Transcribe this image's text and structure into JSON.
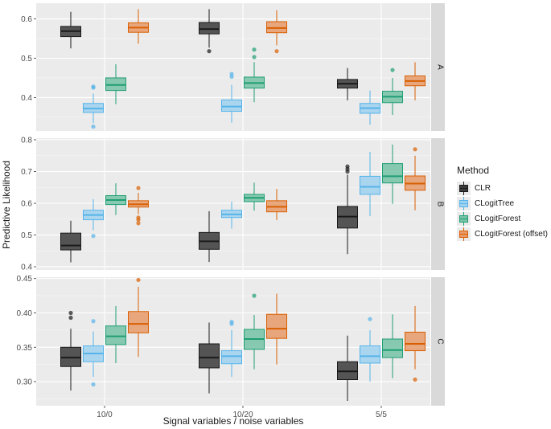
{
  "chart_data": {
    "type": "boxplot",
    "xlabel": "Signal variables / noise variables",
    "ylabel": "Predictive Likelihood",
    "categories": [
      "10/0",
      "10/20",
      "5/5"
    ],
    "legend_title": "Method",
    "series": [
      {
        "name": "CLR",
        "color": "#1a1a1a",
        "fill": "#3a3a3a"
      },
      {
        "name": "CLogitTree",
        "color": "#56b4e9",
        "fill": "#9fd1f0"
      },
      {
        "name": "CLogitForest",
        "color": "#1f9e74",
        "fill": "#76c3a6"
      },
      {
        "name": "CLogitForest (offset)",
        "color": "#d95f02",
        "fill": "#e89a68"
      }
    ],
    "panels": [
      {
        "strip": "A",
        "ylim": [
          0.315,
          0.64
        ],
        "ticks": [
          0.4,
          0.5,
          0.6
        ],
        "tick_labels": [
          "0.4",
          "0.5",
          "0.6"
        ],
        "boxes": [
          [
            {
              "q1": 0.555,
              "median": 0.569,
              "q3": 0.581,
              "whisker_low": 0.525,
              "whisker_high": 0.618,
              "outliers": []
            },
            {
              "q1": 0.362,
              "median": 0.372,
              "q3": 0.385,
              "whisker_low": 0.335,
              "whisker_high": 0.41,
              "outliers": [
                0.326,
                0.425,
                0.428
              ]
            },
            {
              "q1": 0.418,
              "median": 0.432,
              "q3": 0.45,
              "whisker_low": 0.383,
              "whisker_high": 0.485,
              "outliers": []
            },
            {
              "q1": 0.566,
              "median": 0.578,
              "q3": 0.59,
              "whisker_low": 0.537,
              "whisker_high": 0.625,
              "outliers": []
            }
          ],
          [
            {
              "q1": 0.562,
              "median": 0.574,
              "q3": 0.591,
              "whisker_low": 0.527,
              "whisker_high": 0.625,
              "outliers": [
                0.518
              ]
            },
            {
              "q1": 0.365,
              "median": 0.377,
              "q3": 0.394,
              "whisker_low": 0.336,
              "whisker_high": 0.432,
              "outliers": [
                0.453,
                0.46
              ]
            },
            {
              "q1": 0.424,
              "median": 0.437,
              "q3": 0.452,
              "whisker_low": 0.388,
              "whisker_high": 0.49,
              "outliers": [
                0.503,
                0.522
              ]
            },
            {
              "q1": 0.565,
              "median": 0.577,
              "q3": 0.593,
              "whisker_low": 0.533,
              "whisker_high": 0.622,
              "outliers": [
                0.518
              ]
            }
          ],
          [
            {
              "q1": 0.424,
              "median": 0.435,
              "q3": 0.446,
              "whisker_low": 0.393,
              "whisker_high": 0.475,
              "outliers": []
            },
            {
              "q1": 0.36,
              "median": 0.373,
              "q3": 0.385,
              "whisker_low": 0.331,
              "whisker_high": 0.418,
              "outliers": []
            },
            {
              "q1": 0.387,
              "median": 0.402,
              "q3": 0.416,
              "whisker_low": 0.356,
              "whisker_high": 0.45,
              "outliers": [
                0.47
              ]
            },
            {
              "q1": 0.43,
              "median": 0.442,
              "q3": 0.455,
              "whisker_low": 0.393,
              "whisker_high": 0.49,
              "outliers": []
            }
          ]
        ]
      },
      {
        "strip": "B",
        "ylim": [
          0.39,
          0.805
        ],
        "ticks": [
          0.4,
          0.5,
          0.6,
          0.7,
          0.8
        ],
        "tick_labels": [
          "0.4",
          "0.5",
          "0.6",
          "0.7",
          "0.8"
        ],
        "boxes": [
          [
            {
              "q1": 0.453,
              "median": 0.467,
              "q3": 0.506,
              "whisker_low": 0.414,
              "whisker_high": 0.545,
              "outliers": []
            },
            {
              "q1": 0.548,
              "median": 0.563,
              "q3": 0.578,
              "whisker_low": 0.515,
              "whisker_high": 0.613,
              "outliers": [
                0.497
              ]
            },
            {
              "q1": 0.596,
              "median": 0.61,
              "q3": 0.624,
              "whisker_low": 0.563,
              "whisker_high": 0.663,
              "outliers": []
            },
            {
              "q1": 0.588,
              "median": 0.597,
              "q3": 0.608,
              "whisker_low": 0.566,
              "whisker_high": 0.633,
              "outliers": [
                0.648,
                0.555,
                0.548,
                0.537
              ]
            }
          ],
          [
            {
              "q1": 0.455,
              "median": 0.48,
              "q3": 0.508,
              "whisker_low": 0.415,
              "whisker_high": 0.575,
              "outliers": []
            },
            {
              "q1": 0.555,
              "median": 0.565,
              "q3": 0.578,
              "whisker_low": 0.52,
              "whisker_high": 0.605,
              "outliers": []
            },
            {
              "q1": 0.605,
              "median": 0.617,
              "q3": 0.628,
              "whisker_low": 0.577,
              "whisker_high": 0.665,
              "outliers": []
            },
            {
              "q1": 0.573,
              "median": 0.589,
              "q3": 0.608,
              "whisker_low": 0.547,
              "whisker_high": 0.645,
              "outliers": []
            }
          ],
          [
            {
              "q1": 0.522,
              "median": 0.558,
              "q3": 0.59,
              "whisker_low": 0.44,
              "whisker_high": 0.69,
              "outliers": [
                0.7,
                0.708,
                0.716
              ]
            },
            {
              "q1": 0.628,
              "median": 0.652,
              "q3": 0.685,
              "whisker_low": 0.56,
              "whisker_high": 0.762,
              "outliers": []
            },
            {
              "q1": 0.664,
              "median": 0.685,
              "q3": 0.725,
              "whisker_low": 0.598,
              "whisker_high": 0.785,
              "outliers": []
            },
            {
              "q1": 0.641,
              "median": 0.662,
              "q3": 0.686,
              "whisker_low": 0.578,
              "whisker_high": 0.75,
              "outliers": [
                0.77
              ]
            }
          ]
        ]
      },
      {
        "strip": "C",
        "ylim": [
          0.265,
          0.452
        ],
        "ticks": [
          0.3,
          0.35,
          0.4,
          0.45
        ],
        "tick_labels": [
          "0.30",
          "0.35",
          "0.40",
          "0.45"
        ],
        "boxes": [
          [
            {
              "q1": 0.322,
              "median": 0.335,
              "q3": 0.35,
              "whisker_low": 0.287,
              "whisker_high": 0.377,
              "outliers": [
                0.393,
                0.4
              ]
            },
            {
              "q1": 0.329,
              "median": 0.341,
              "q3": 0.352,
              "whisker_low": 0.307,
              "whisker_high": 0.373,
              "outliers": [
                0.388,
                0.296
              ]
            },
            {
              "q1": 0.354,
              "median": 0.366,
              "q3": 0.381,
              "whisker_low": 0.327,
              "whisker_high": 0.41,
              "outliers": []
            },
            {
              "q1": 0.371,
              "median": 0.384,
              "q3": 0.402,
              "whisker_low": 0.336,
              "whisker_high": 0.438,
              "outliers": [
                0.448
              ]
            }
          ],
          [
            {
              "q1": 0.32,
              "median": 0.335,
              "q3": 0.355,
              "whisker_low": 0.283,
              "whisker_high": 0.386,
              "outliers": []
            },
            {
              "q1": 0.326,
              "median": 0.337,
              "q3": 0.345,
              "whisker_low": 0.307,
              "whisker_high": 0.375,
              "outliers": [
                0.384,
                0.387
              ]
            },
            {
              "q1": 0.347,
              "median": 0.362,
              "q3": 0.376,
              "whisker_low": 0.318,
              "whisker_high": 0.397,
              "outliers": [
                0.425
              ]
            },
            {
              "q1": 0.363,
              "median": 0.377,
              "q3": 0.398,
              "whisker_low": 0.325,
              "whisker_high": 0.428,
              "outliers": []
            }
          ],
          [
            {
              "q1": 0.303,
              "median": 0.315,
              "q3": 0.329,
              "whisker_low": 0.272,
              "whisker_high": 0.367,
              "outliers": []
            },
            {
              "q1": 0.327,
              "median": 0.337,
              "q3": 0.352,
              "whisker_low": 0.3,
              "whisker_high": 0.375,
              "outliers": [
                0.391
              ]
            },
            {
              "q1": 0.335,
              "median": 0.346,
              "q3": 0.362,
              "whisker_low": 0.305,
              "whisker_high": 0.398,
              "outliers": []
            },
            {
              "q1": 0.345,
              "median": 0.355,
              "q3": 0.372,
              "whisker_low": 0.318,
              "whisker_high": 0.41,
              "outliers": [
                0.303
              ]
            }
          ]
        ]
      }
    ]
  }
}
